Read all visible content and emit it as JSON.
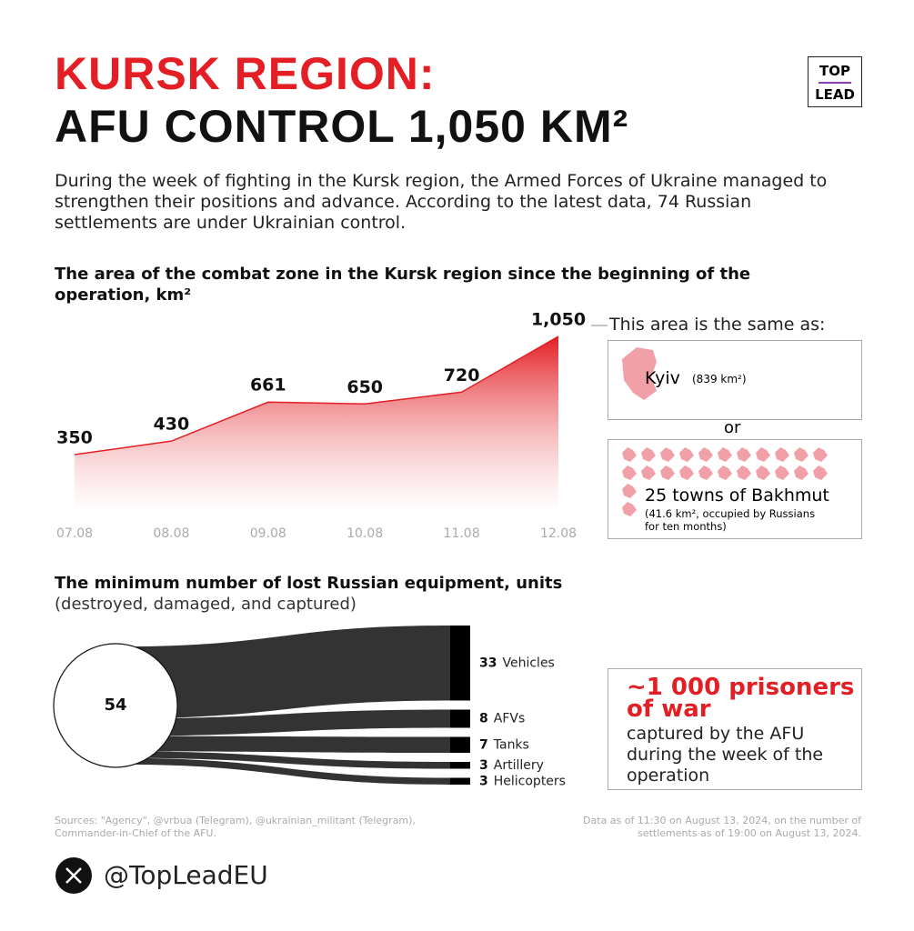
{
  "header": {
    "title_line1": "KURSK REGION:",
    "title_line2": "AFU CONTROL 1,050 KM²",
    "logo_top": "TOP",
    "logo_bottom": "LEAD"
  },
  "description": "During the week of fighting in the Kursk region, the Armed Forces of Ukraine managed to strengthen their positions and advance. According to the latest data, 74 Russian settlements are under Ukrainian control.",
  "chart_data": [
    {
      "type": "area",
      "title": "The area of the combat zone in the Kursk region since the beginning of the operation, km²",
      "categories": [
        "07.08",
        "08.08",
        "09.08",
        "10.08",
        "11.08",
        "12.08"
      ],
      "values": [
        350,
        430,
        661,
        650,
        720,
        1050
      ],
      "value_labels": [
        "350",
        "430",
        "661",
        "650",
        "720",
        "1,050"
      ],
      "color": "#e31e24",
      "annotation": "This area is the same as:"
    },
    {
      "type": "flow",
      "title": "The minimum number of lost Russian equipment, units",
      "subtitle": "(destroyed, damaged, and captured)",
      "total": 54,
      "categories": [
        "Vehicles",
        "AFVs",
        "Tanks",
        "Artillery",
        "Helicopters"
      ],
      "values": [
        33,
        8,
        7,
        3,
        3
      ],
      "color": "#333333"
    }
  ],
  "comparison": {
    "kyiv_label": "Kyiv",
    "kyiv_area": "(839 km²)",
    "connector": "or",
    "bakhmut_label": "25 towns of Bakhmut",
    "bakhmut_note": "(41.6 km², occupied by Russians for ten months)"
  },
  "prisoners": {
    "headline": "~1 000 prisoners of war",
    "text": "captured by the AFU during the week of the operation"
  },
  "sources": "Sources: \"Agency\", @vrbua (Telegram), @ukrainian_militant (Telegram), Commander-in-Chief of the AFU.",
  "data_note": "Data as of 11:30 on August 13, 2024, on the number of settlements as of 19:00 on August 13, 2024.",
  "footer": {
    "handle": "@TopLeadEU"
  }
}
